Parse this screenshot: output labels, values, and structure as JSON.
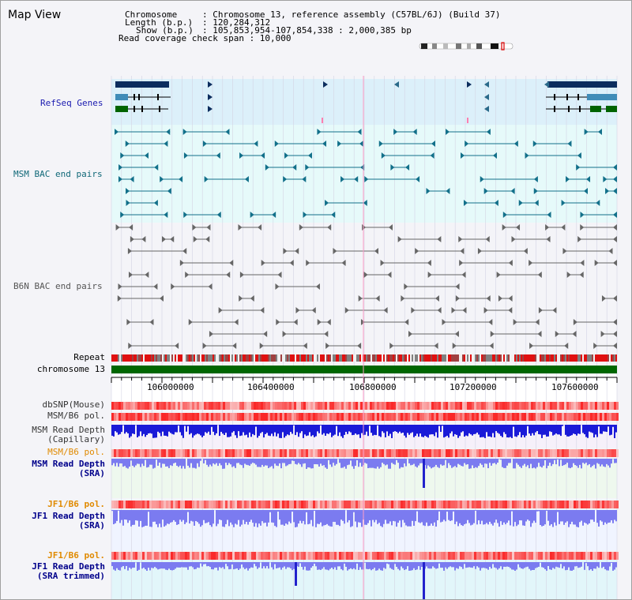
{
  "title": "Map View",
  "info": {
    "chromosome_key": "Chromosome",
    "chromosome_val": ": Chromosome 13, reference assembly (C57BL/6J) (Build 37)",
    "length_key": "Length (b.p.)",
    "length_val": ": 120,284,312",
    "show_key": "Show (b.p.)",
    "show_val": ": 105,853,954-107,854,338 : 2,000,385 bp",
    "coverage": "Read coverage check span : 10,000"
  },
  "tracks": {
    "refseq": "RefSeq Genes",
    "msm_bac": "MSM BAC end pairs",
    "b6n_bac": "B6N BAC end pairs",
    "repeat": "Repeat",
    "chromosome": "chromosome 13",
    "dbsnp": "dbSNP(Mouse)",
    "msm_b6_pol": "MSM/B6 pol.",
    "msm_depth_cap_1": "MSM Read Depth",
    "msm_depth_cap_2": "(Capillary)",
    "msm_b6_pol_2": "MSM/B6 pol.",
    "msm_depth_sra_1": "MSM Read Depth",
    "msm_depth_sra_2": "(SRA)",
    "jf1_b6_pol": "JF1/B6 pol.",
    "jf1_depth_sra_1": "JF1 Read Depth",
    "jf1_depth_sra_2": "(SRA)",
    "jf1_b6_pol_2": "JF1/B6 pol.",
    "jf1_depth_trim_1": "JF1 Read Depth",
    "jf1_depth_trim_2": "(SRA trimmed)"
  },
  "ruler": {
    "labels": [
      "106000000",
      "106400000",
      "106800000",
      "107200000",
      "107600000"
    ]
  },
  "colors": {
    "refseq_dark": "#0c2d5e",
    "refseq_mid": "#3f8cb8",
    "refseq_green": "#006400",
    "msm_bac": "#12708a",
    "b6n_bac": "#666666",
    "chrom": "#006600",
    "depth_blue": "#1a1ad8",
    "depth_lavender": "#7b7bf0",
    "label_blue": "#00008b",
    "label_orange": "#e08a00",
    "label_teal": "#106878"
  }
}
